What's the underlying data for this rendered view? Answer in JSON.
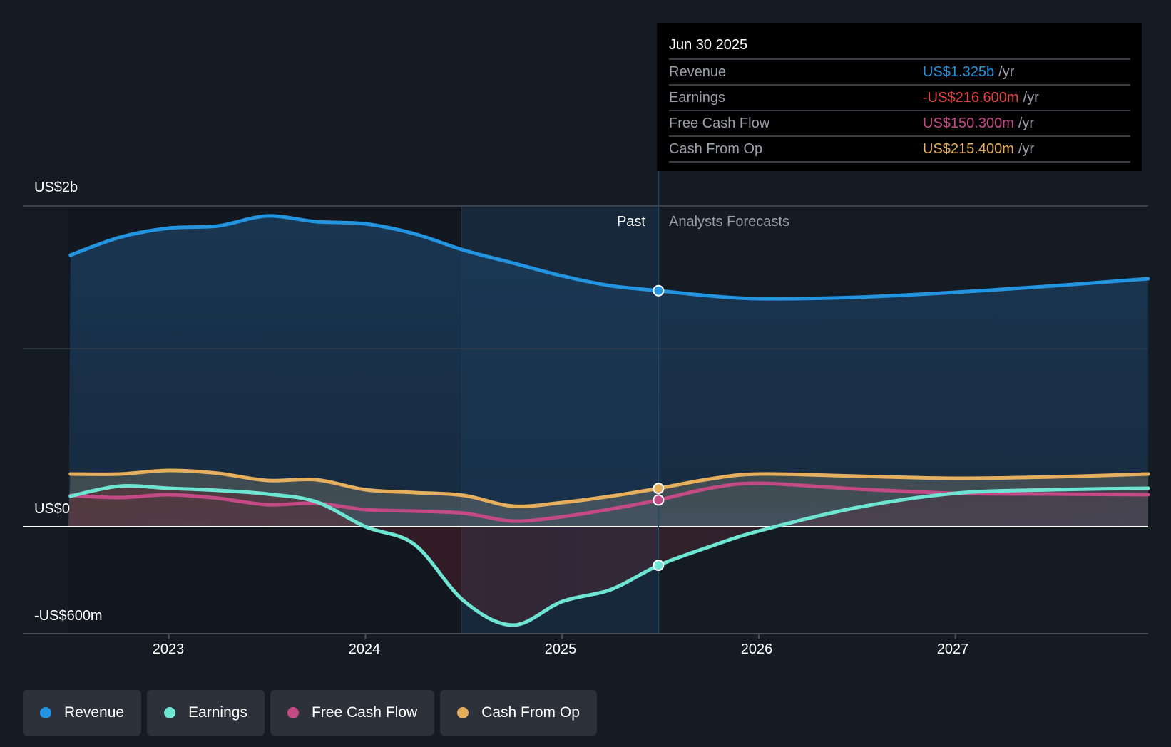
{
  "colors": {
    "revenue": "#2394df",
    "earnings": "#6ee5d3",
    "fcf": "#c44a86",
    "cfo": "#e6af5e",
    "negative": "#e64141",
    "background": "#151b23"
  },
  "tooltip": {
    "date": "Jun 30 2025",
    "unit": "/yr",
    "rows": [
      {
        "name": "Revenue",
        "value": "US$1.325b",
        "color_key": "revenue"
      },
      {
        "name": "Earnings",
        "value": "-US$216.600m",
        "color_key": "negative"
      },
      {
        "name": "Free Cash Flow",
        "value": "US$150.300m",
        "color_key": "fcf"
      },
      {
        "name": "Cash From Op",
        "value": "US$215.400m",
        "color_key": "cfo"
      }
    ]
  },
  "periods": {
    "past": "Past",
    "forecast": "Analysts Forecasts"
  },
  "legend": [
    {
      "label": "Revenue",
      "color_key": "revenue"
    },
    {
      "label": "Earnings",
      "color_key": "earnings"
    },
    {
      "label": "Free Cash Flow",
      "color_key": "fcf"
    },
    {
      "label": "Cash From Op",
      "color_key": "cfo"
    }
  ],
  "chart_data": {
    "type": "area",
    "title": "",
    "xlabel": "",
    "ylabel": "",
    "y_unit": "US$ millions",
    "x_range": [
      2022.49,
      2027.98
    ],
    "ylim": [
      -600,
      1800
    ],
    "y_tick_labels": [
      {
        "value": 1800,
        "label": "US$2b"
      },
      {
        "value": 0,
        "label": "US$0"
      },
      {
        "value": -600,
        "label": "-US$600m"
      }
    ],
    "y_gridlines": [
      1800,
      1000,
      0
    ],
    "x_ticks": [
      {
        "value": 2023,
        "label": "2023"
      },
      {
        "value": 2024,
        "label": "2024"
      },
      {
        "value": 2025,
        "label": "2025"
      },
      {
        "value": 2026,
        "label": "2026"
      },
      {
        "value": 2027,
        "label": "2027"
      }
    ],
    "past_forecast_divider": 2025.49,
    "highlight_band": [
      2024.49,
      2025.49
    ],
    "highlight_point": 2025.49,
    "x": [
      2022.5,
      2022.75,
      2023.0,
      2023.25,
      2023.5,
      2023.75,
      2024.0,
      2024.25,
      2024.5,
      2024.75,
      2025.0,
      2025.25,
      2025.49,
      2025.75,
      2026.0,
      2026.5,
      2027.0,
      2027.5,
      2027.98
    ],
    "series": [
      {
        "name": "Revenue",
        "key": "revenue",
        "values": [
          1524,
          1624,
          1676,
          1688,
          1744,
          1712,
          1700,
          1644,
          1552,
          1480,
          1408,
          1352,
          1325,
          1296,
          1280,
          1288,
          1316,
          1352,
          1392
        ]
      },
      {
        "name": "Earnings",
        "key": "earnings",
        "values": [
          172,
          228,
          216,
          204,
          184,
          140,
          0,
          -100,
          -416,
          -552,
          -420,
          -352,
          -216.6,
          -112,
          -24,
          108,
          188,
          208,
          216
        ]
      },
      {
        "name": "Free Cash Flow",
        "key": "fcf",
        "values": [
          176,
          164,
          180,
          160,
          124,
          132,
          96,
          88,
          76,
          32,
          56,
          100,
          150.3,
          216,
          244,
          212,
          188,
          184,
          180
        ]
      },
      {
        "name": "Cash From Op",
        "key": "cfo",
        "values": [
          296,
          296,
          316,
          300,
          260,
          264,
          208,
          192,
          176,
          116,
          136,
          172,
          215.4,
          268,
          296,
          284,
          272,
          280,
          296
        ]
      }
    ],
    "legend_position": "bottom-left"
  }
}
